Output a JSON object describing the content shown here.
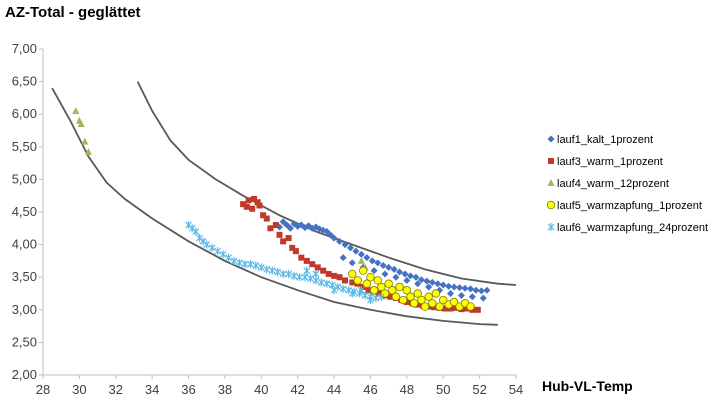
{
  "chart_data": {
    "type": "scatter",
    "title": "AZ-Total - geglättet",
    "xlabel": "Hub-VL-Temp",
    "ylabel": "",
    "xlim": [
      28,
      54
    ],
    "ylim": [
      2.0,
      7.0
    ],
    "x_ticks": [
      "28",
      "30",
      "32",
      "34",
      "36",
      "38",
      "40",
      "42",
      "44",
      "46",
      "48",
      "50",
      "52",
      "54"
    ],
    "y_ticks": [
      "2,00",
      "2,50",
      "3,00",
      "3,50",
      "4,00",
      "4,50",
      "5,00",
      "5,50",
      "6,00",
      "6,50",
      "7,00"
    ],
    "grid": false,
    "legend_position": "right",
    "series": [
      {
        "name": "lauf1_kalt_1prozent",
        "marker": "diamond",
        "color": "#4472C4",
        "points": [
          [
            41.0,
            4.27
          ],
          [
            41.2,
            4.35
          ],
          [
            41.4,
            4.3
          ],
          [
            41.6,
            4.25
          ],
          [
            41.8,
            4.32
          ],
          [
            42.0,
            4.28
          ],
          [
            42.2,
            4.3
          ],
          [
            42.4,
            4.26
          ],
          [
            42.6,
            4.29
          ],
          [
            42.8,
            4.25
          ],
          [
            43.0,
            4.27
          ],
          [
            43.2,
            4.24
          ],
          [
            43.4,
            4.22
          ],
          [
            43.6,
            4.2
          ],
          [
            43.8,
            4.15
          ],
          [
            44.0,
            4.1
          ],
          [
            44.3,
            4.05
          ],
          [
            44.6,
            4.0
          ],
          [
            44.9,
            3.95
          ],
          [
            45.2,
            3.9
          ],
          [
            45.5,
            3.85
          ],
          [
            45.8,
            3.8
          ],
          [
            46.1,
            3.75
          ],
          [
            46.4,
            3.72
          ],
          [
            46.7,
            3.68
          ],
          [
            47.0,
            3.65
          ],
          [
            47.3,
            3.62
          ],
          [
            47.6,
            3.58
          ],
          [
            47.9,
            3.55
          ],
          [
            48.2,
            3.52
          ],
          [
            48.5,
            3.5
          ],
          [
            48.8,
            3.46
          ],
          [
            49.1,
            3.44
          ],
          [
            49.4,
            3.42
          ],
          [
            49.7,
            3.4
          ],
          [
            50.0,
            3.38
          ],
          [
            50.3,
            3.36
          ],
          [
            50.6,
            3.35
          ],
          [
            50.9,
            3.34
          ],
          [
            51.2,
            3.33
          ],
          [
            51.5,
            3.32
          ],
          [
            51.8,
            3.3
          ],
          [
            52.1,
            3.29
          ],
          [
            52.4,
            3.3
          ],
          [
            44.5,
            3.8
          ],
          [
            45.0,
            3.72
          ],
          [
            45.6,
            3.65
          ],
          [
            46.2,
            3.6
          ],
          [
            46.8,
            3.55
          ],
          [
            47.4,
            3.5
          ],
          [
            48.0,
            3.45
          ],
          [
            48.6,
            3.4
          ],
          [
            49.2,
            3.35
          ],
          [
            49.8,
            3.3
          ],
          [
            50.4,
            3.25
          ],
          [
            51.0,
            3.22
          ],
          [
            51.6,
            3.2
          ],
          [
            52.2,
            3.18
          ]
        ]
      },
      {
        "name": "lauf3_warm_1prozent",
        "marker": "square",
        "color": "#C0392B",
        "points": [
          [
            39.0,
            4.62
          ],
          [
            39.2,
            4.58
          ],
          [
            39.3,
            4.68
          ],
          [
            39.5,
            4.55
          ],
          [
            39.6,
            4.7
          ],
          [
            39.8,
            4.65
          ],
          [
            39.9,
            4.6
          ],
          [
            40.1,
            4.45
          ],
          [
            40.3,
            4.4
          ],
          [
            40.5,
            4.25
          ],
          [
            40.8,
            4.3
          ],
          [
            41.0,
            4.15
          ],
          [
            41.2,
            4.05
          ],
          [
            41.5,
            4.1
          ],
          [
            41.7,
            3.95
          ],
          [
            41.9,
            3.9
          ],
          [
            42.2,
            3.8
          ],
          [
            42.5,
            3.75
          ],
          [
            42.8,
            3.7
          ],
          [
            43.1,
            3.65
          ],
          [
            43.4,
            3.6
          ],
          [
            43.7,
            3.55
          ],
          [
            44.0,
            3.52
          ],
          [
            44.3,
            3.5
          ],
          [
            44.6,
            3.45
          ],
          [
            45.0,
            3.42
          ],
          [
            45.3,
            3.4
          ],
          [
            45.6,
            3.35
          ],
          [
            45.9,
            3.3
          ],
          [
            46.2,
            3.28
          ],
          [
            46.5,
            3.25
          ],
          [
            46.8,
            3.22
          ],
          [
            47.1,
            3.2
          ],
          [
            47.4,
            3.18
          ],
          [
            47.7,
            3.15
          ],
          [
            48.0,
            3.12
          ],
          [
            48.3,
            3.1
          ],
          [
            48.6,
            3.08
          ],
          [
            48.9,
            3.06
          ],
          [
            49.2,
            3.05
          ],
          [
            49.5,
            3.04
          ],
          [
            49.8,
            3.03
          ],
          [
            50.1,
            3.02
          ],
          [
            50.4,
            3.02
          ],
          [
            50.7,
            3.03
          ],
          [
            51.0,
            3.01
          ],
          [
            51.3,
            3.02
          ],
          [
            51.6,
            3.0
          ],
          [
            51.9,
            3.0
          ]
        ]
      },
      {
        "name": "lauf4_warm_12prozent",
        "marker": "triangle",
        "color": "#9BBB59",
        "points": [
          [
            29.8,
            6.05
          ],
          [
            30.0,
            5.9
          ],
          [
            30.1,
            5.85
          ],
          [
            30.3,
            5.58
          ],
          [
            30.5,
            5.42
          ],
          [
            45.5,
            3.75
          ],
          [
            45.7,
            3.65
          ]
        ]
      },
      {
        "name": "lauf5_warmzapfung_1prozent",
        "marker": "circle",
        "color": "#FFFF00",
        "points": [
          [
            45.0,
            3.55
          ],
          [
            45.3,
            3.45
          ],
          [
            45.6,
            3.6
          ],
          [
            45.8,
            3.4
          ],
          [
            46.0,
            3.5
          ],
          [
            46.2,
            3.3
          ],
          [
            46.4,
            3.45
          ],
          [
            46.6,
            3.35
          ],
          [
            46.8,
            3.25
          ],
          [
            47.0,
            3.4
          ],
          [
            47.2,
            3.3
          ],
          [
            47.4,
            3.2
          ],
          [
            47.6,
            3.35
          ],
          [
            47.8,
            3.15
          ],
          [
            48.0,
            3.3
          ],
          [
            48.2,
            3.2
          ],
          [
            48.4,
            3.1
          ],
          [
            48.6,
            3.25
          ],
          [
            48.8,
            3.15
          ],
          [
            49.0,
            3.05
          ],
          [
            49.2,
            3.2
          ],
          [
            49.4,
            3.1
          ],
          [
            49.6,
            3.25
          ],
          [
            49.8,
            3.05
          ],
          [
            50.0,
            3.15
          ],
          [
            50.3,
            3.08
          ],
          [
            50.6,
            3.12
          ],
          [
            50.9,
            3.05
          ],
          [
            51.2,
            3.1
          ],
          [
            51.5,
            3.05
          ]
        ]
      },
      {
        "name": "lauf6_warmzapfung_24prozent",
        "marker": "star",
        "color": "#5BB8E6",
        "points": [
          [
            36.0,
            4.3
          ],
          [
            36.2,
            4.25
          ],
          [
            36.4,
            4.2
          ],
          [
            36.6,
            4.1
          ],
          [
            36.8,
            4.05
          ],
          [
            37.0,
            4.0
          ],
          [
            37.3,
            3.95
          ],
          [
            37.6,
            3.9
          ],
          [
            37.9,
            3.85
          ],
          [
            38.2,
            3.8
          ],
          [
            38.5,
            3.75
          ],
          [
            38.8,
            3.72
          ],
          [
            39.1,
            3.7
          ],
          [
            39.4,
            3.7
          ],
          [
            39.7,
            3.68
          ],
          [
            40.0,
            3.65
          ],
          [
            40.3,
            3.62
          ],
          [
            40.6,
            3.6
          ],
          [
            40.9,
            3.58
          ],
          [
            41.2,
            3.55
          ],
          [
            41.5,
            3.55
          ],
          [
            41.8,
            3.52
          ],
          [
            42.1,
            3.5
          ],
          [
            42.4,
            3.5
          ],
          [
            42.7,
            3.48
          ],
          [
            43.0,
            3.45
          ],
          [
            43.3,
            3.42
          ],
          [
            43.6,
            3.4
          ],
          [
            43.9,
            3.38
          ],
          [
            44.2,
            3.35
          ],
          [
            44.5,
            3.32
          ],
          [
            44.8,
            3.3
          ],
          [
            45.1,
            3.28
          ],
          [
            45.4,
            3.25
          ],
          [
            45.7,
            3.22
          ],
          [
            46.0,
            3.2
          ],
          [
            46.3,
            3.18
          ],
          [
            46.6,
            3.2
          ],
          [
            42.5,
            3.6
          ],
          [
            43.0,
            3.55
          ],
          [
            44.0,
            3.3
          ],
          [
            45.0,
            3.25
          ],
          [
            46.0,
            3.15
          ],
          [
            45.5,
            3.3
          ]
        ]
      }
    ],
    "envelope_curves": [
      {
        "points": [
          [
            28.5,
            6.4
          ],
          [
            29.5,
            5.9
          ],
          [
            30.5,
            5.35
          ],
          [
            31.5,
            4.95
          ],
          [
            32.5,
            4.7
          ],
          [
            34.0,
            4.4
          ],
          [
            36.0,
            4.05
          ],
          [
            38.0,
            3.75
          ],
          [
            40.0,
            3.5
          ],
          [
            42.0,
            3.3
          ],
          [
            44.0,
            3.12
          ],
          [
            46.0,
            3.0
          ],
          [
            48.0,
            2.9
          ],
          [
            50.0,
            2.83
          ],
          [
            52.0,
            2.78
          ],
          [
            53.0,
            2.77
          ]
        ]
      },
      {
        "points": [
          [
            33.2,
            6.5
          ],
          [
            34.0,
            6.05
          ],
          [
            35.0,
            5.6
          ],
          [
            36.0,
            5.3
          ],
          [
            37.5,
            5.0
          ],
          [
            39.0,
            4.75
          ],
          [
            41.0,
            4.45
          ],
          [
            43.0,
            4.2
          ],
          [
            45.0,
            4.0
          ],
          [
            47.0,
            3.8
          ],
          [
            49.0,
            3.62
          ],
          [
            51.0,
            3.48
          ],
          [
            53.0,
            3.4
          ],
          [
            54.0,
            3.38
          ]
        ]
      }
    ]
  }
}
